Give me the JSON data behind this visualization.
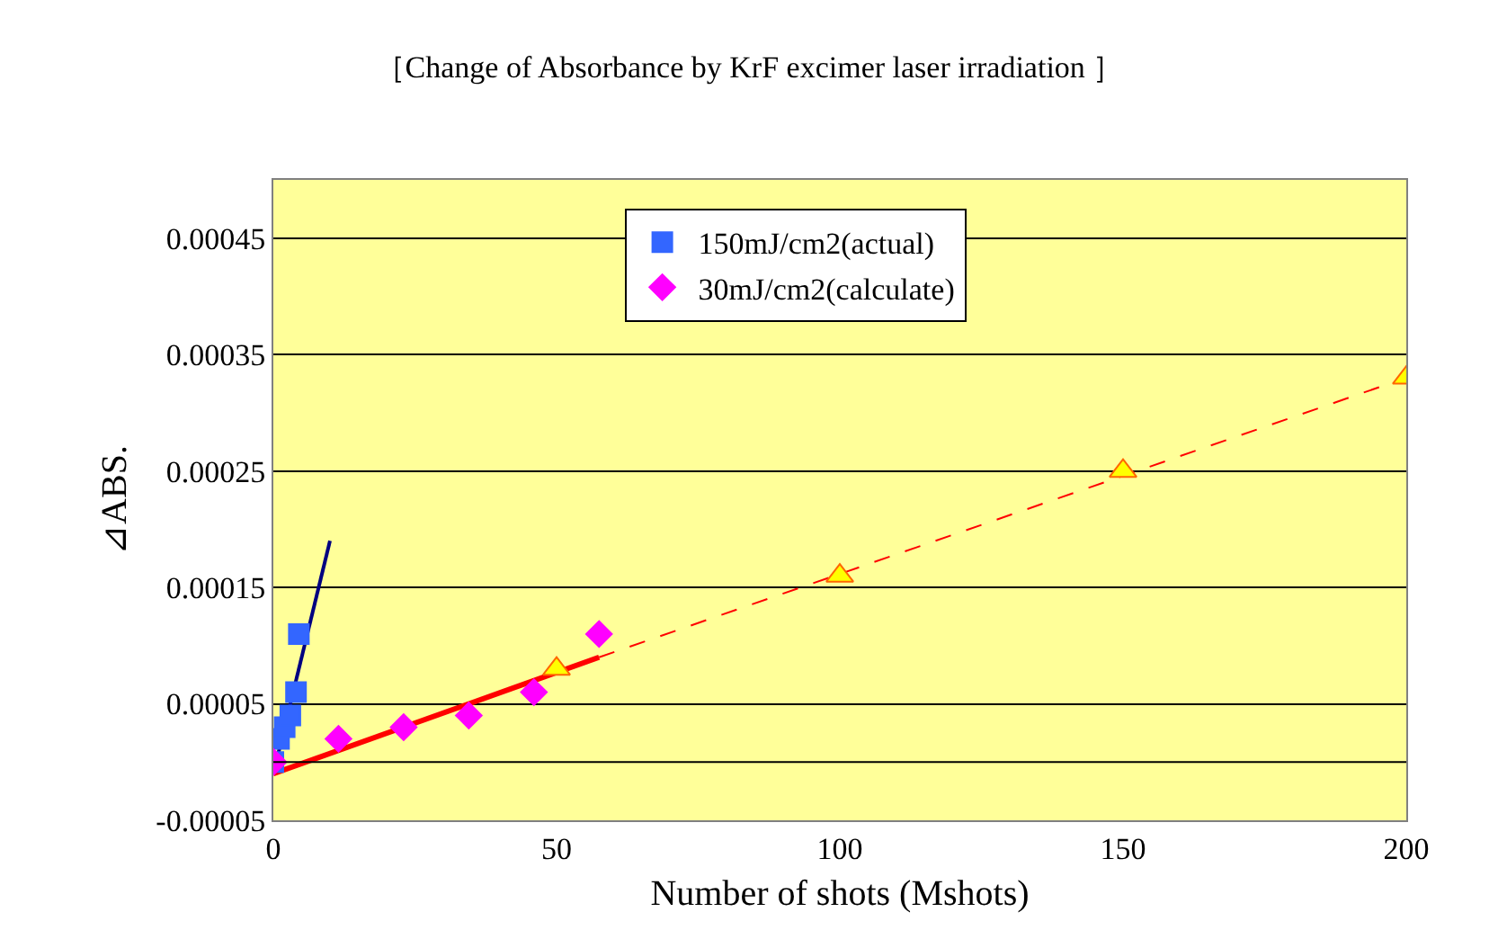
{
  "chart_data": {
    "type": "scatter",
    "title": "［Change of Absorbance by KrF excimer laser irradiation ］",
    "xlabel": "Number of shots (Mshots)",
    "ylabel": "⊿ABS.",
    "xlim": [
      0,
      200
    ],
    "xticks": [
      0,
      50,
      100,
      150,
      200
    ],
    "ylim": [
      -5e-05,
      0.0005
    ],
    "yticks": [
      {
        "value": 0.00045,
        "label": "0.00045"
      },
      {
        "value": 0.00035,
        "label": "0.00035"
      },
      {
        "value": 0.00025,
        "label": "0.00025"
      },
      {
        "value": 0.00015,
        "label": "0.00015"
      },
      {
        "value": 5e-05,
        "label": "0.00005"
      },
      {
        "value": -5e-05,
        "label": "-0.00005"
      }
    ],
    "grid": "y",
    "legend": "top",
    "ref_lines": [
      {
        "axis": "y",
        "value": 0,
        "color": "#000000"
      }
    ],
    "series": [
      {
        "type": "line",
        "color": "#000080",
        "line_style": "solid",
        "marker": "none",
        "x": [
          0,
          10
        ],
        "values": [
          -1e-05,
          0.00019
        ]
      },
      {
        "type": "line",
        "color": "#ff0000",
        "line_style": "solid",
        "marker": "none",
        "x": [
          0,
          57.5
        ],
        "values": [
          -1e-05,
          9e-05
        ]
      },
      {
        "type": "line",
        "color": "#ff0000",
        "line_style": "dashed",
        "marker": "none",
        "x": [
          57.5,
          200
        ],
        "values": [
          9e-05,
          0.00033
        ]
      },
      {
        "name": "150mJ/cm2(actual)",
        "marker": "square",
        "color": "#3366ff",
        "x": [
          0,
          1,
          2,
          3,
          4,
          4.5
        ],
        "values": [
          0,
          2e-05,
          3e-05,
          4e-05,
          6e-05,
          0.00011
        ]
      },
      {
        "name": "30mJ/cm2(calculate)",
        "marker": "diamond",
        "color": "#ff00ff",
        "x": [
          0,
          11.5,
          23,
          34.5,
          46,
          57.5
        ],
        "values": [
          0,
          2e-05,
          3e-05,
          4e-05,
          6e-05,
          0.00011
        ]
      },
      {
        "marker": "triangle",
        "color": "#ffff00",
        "x": [
          50,
          100,
          150,
          200
        ],
        "values": [
          8e-05,
          0.00016,
          0.00025,
          0.00033
        ]
      }
    ]
  }
}
